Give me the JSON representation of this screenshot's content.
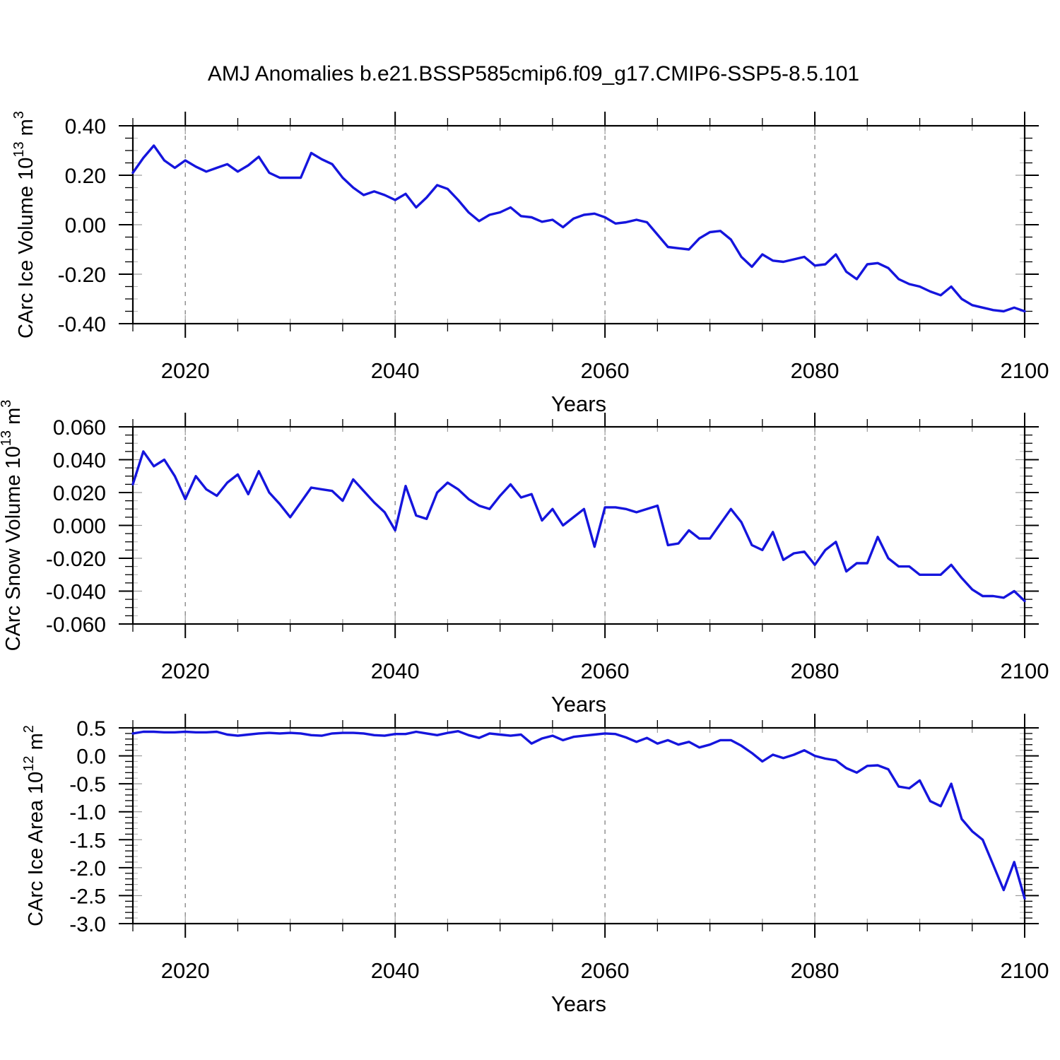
{
  "title": "AMJ Anomalies b.e21.BSSP585cmip6.f09_g17.CMIP6-SSP5-8.5.101",
  "xlabel": "Years",
  "line_color": "#1515dd",
  "grid_color": "#8a8a8a",
  "axis_color": "#000000",
  "x_range": [
    2015,
    2100
  ],
  "x_major_ticks": [
    2020,
    2040,
    2060,
    2080,
    2100
  ],
  "x_minor_step": 5,
  "grid_years": [
    2020,
    2040,
    2060,
    2080
  ],
  "chart_data": [
    {
      "type": "line",
      "name": "carc-ice-volume",
      "ylabel_text": "CArc Ice Volume 10^13 m^3",
      "ylabel_parts": [
        {
          "t": "CArc Ice Volume 10"
        },
        {
          "t": "13",
          "sup": true
        },
        {
          "t": " m",
          "sup": false
        },
        {
          "t": "3",
          "sup": true
        }
      ],
      "ylim": [
        -0.4,
        0.4
      ],
      "y_major_step": 0.2,
      "y_minor_step": 0.05,
      "y_decimals": 2,
      "x_start": 2015,
      "values": [
        0.21,
        0.27,
        0.32,
        0.26,
        0.23,
        0.26,
        0.235,
        0.215,
        0.23,
        0.245,
        0.215,
        0.24,
        0.275,
        0.21,
        0.19,
        0.19,
        0.19,
        0.29,
        0.265,
        0.245,
        0.19,
        0.15,
        0.12,
        0.135,
        0.12,
        0.1,
        0.125,
        0.07,
        0.11,
        0.16,
        0.145,
        0.1,
        0.05,
        0.015,
        0.04,
        0.05,
        0.07,
        0.035,
        0.03,
        0.012,
        0.02,
        -0.01,
        0.025,
        0.04,
        0.045,
        0.03,
        0.005,
        0.01,
        0.02,
        0.01,
        -0.04,
        -0.09,
        -0.095,
        -0.1,
        -0.055,
        -0.03,
        -0.025,
        -0.06,
        -0.13,
        -0.17,
        -0.12,
        -0.145,
        -0.15,
        -0.14,
        -0.13,
        -0.165,
        -0.16,
        -0.12,
        -0.19,
        -0.22,
        -0.16,
        -0.155,
        -0.175,
        -0.22,
        -0.24,
        -0.25,
        -0.27,
        -0.285,
        -0.25,
        -0.3,
        -0.325,
        -0.335,
        -0.345,
        -0.35,
        -0.335,
        -0.35
      ]
    },
    {
      "type": "line",
      "name": "carc-snow-volume",
      "ylabel_text": "CArc Snow Volume 10^13 m^3",
      "ylabel_parts": [
        {
          "t": "CArc Snow Volume 10"
        },
        {
          "t": "13",
          "sup": true
        },
        {
          "t": " m",
          "sup": false
        },
        {
          "t": "3",
          "sup": true
        }
      ],
      "ylim": [
        -0.06,
        0.06
      ],
      "y_major_step": 0.02,
      "y_minor_step": 0.005,
      "y_decimals": 3,
      "x_start": 2015,
      "values": [
        0.025,
        0.045,
        0.036,
        0.04,
        0.03,
        0.016,
        0.03,
        0.022,
        0.018,
        0.026,
        0.031,
        0.019,
        0.033,
        0.02,
        0.013,
        0.005,
        0.014,
        0.023,
        0.022,
        0.021,
        0.015,
        0.028,
        0.021,
        0.014,
        0.008,
        -0.003,
        0.024,
        0.006,
        0.004,
        0.02,
        0.026,
        0.022,
        0.016,
        0.012,
        0.01,
        0.018,
        0.025,
        0.017,
        0.019,
        0.003,
        0.01,
        0.0,
        0.005,
        0.01,
        -0.013,
        0.011,
        0.011,
        0.01,
        0.008,
        0.01,
        0.012,
        -0.012,
        -0.011,
        -0.003,
        -0.008,
        -0.008,
        0.001,
        0.01,
        0.002,
        -0.012,
        -0.015,
        -0.004,
        -0.021,
        -0.017,
        -0.016,
        -0.024,
        -0.015,
        -0.01,
        -0.028,
        -0.023,
        -0.023,
        -0.007,
        -0.02,
        -0.025,
        -0.025,
        -0.03,
        -0.03,
        -0.03,
        -0.024,
        -0.032,
        -0.039,
        -0.043,
        -0.043,
        -0.044,
        -0.04,
        -0.046
      ]
    },
    {
      "type": "line",
      "name": "carc-ice-area",
      "ylabel_text": "CArc Ice Area 10^12 m^2",
      "ylabel_parts": [
        {
          "t": "CArc Ice Area 10"
        },
        {
          "t": "12",
          "sup": true
        },
        {
          "t": " m",
          "sup": false
        },
        {
          "t": "2",
          "sup": true
        }
      ],
      "ylim": [
        -3.0,
        0.5
      ],
      "y_major_step": 0.5,
      "y_minor_step": 0.1,
      "y_decimals": 1,
      "x_start": 2015,
      "values": [
        0.4,
        0.43,
        0.43,
        0.42,
        0.42,
        0.43,
        0.42,
        0.42,
        0.43,
        0.38,
        0.36,
        0.38,
        0.4,
        0.41,
        0.4,
        0.41,
        0.4,
        0.37,
        0.36,
        0.4,
        0.41,
        0.41,
        0.4,
        0.37,
        0.36,
        0.39,
        0.39,
        0.43,
        0.4,
        0.37,
        0.41,
        0.44,
        0.37,
        0.32,
        0.4,
        0.38,
        0.36,
        0.38,
        0.22,
        0.31,
        0.36,
        0.28,
        0.34,
        0.36,
        0.38,
        0.4,
        0.39,
        0.33,
        0.25,
        0.32,
        0.22,
        0.28,
        0.2,
        0.25,
        0.15,
        0.2,
        0.28,
        0.28,
        0.18,
        0.05,
        -0.1,
        0.02,
        -0.04,
        0.02,
        0.1,
        0.0,
        -0.05,
        -0.08,
        -0.22,
        -0.3,
        -0.18,
        -0.17,
        -0.24,
        -0.55,
        -0.58,
        -0.44,
        -0.81,
        -0.9,
        -0.5,
        -1.13,
        -1.35,
        -1.5,
        -1.95,
        -2.4,
        -1.9,
        -2.55
      ]
    }
  ]
}
